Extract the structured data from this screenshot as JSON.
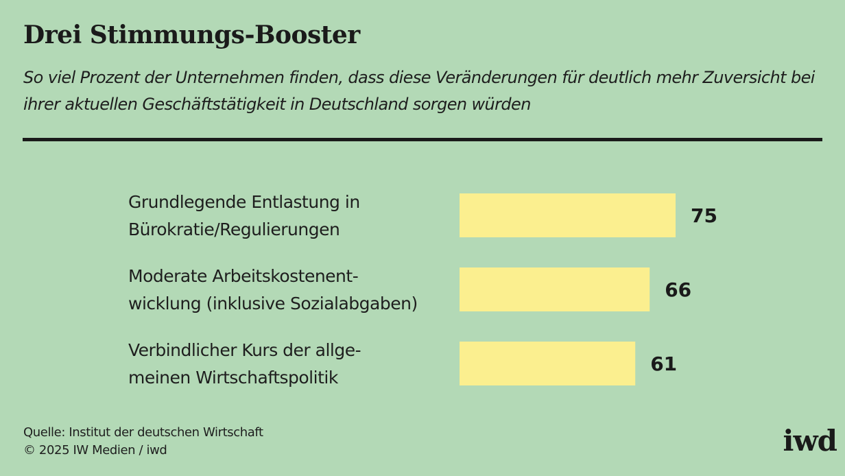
{
  "header": {
    "title": "Drei Stimmungs-Booster",
    "subtitle": "So viel Prozent der Unternehmen finden, dass diese Veränderungen für deutlich mehr Zuversicht bei ihrer aktuellen Geschäftstätigkeit in Deutschland sorgen würden"
  },
  "chart_data": {
    "type": "bar",
    "orientation": "horizontal",
    "title": "Drei Stimmungs-Booster",
    "xlabel": "",
    "ylabel": "",
    "xlim": [
      0,
      100
    ],
    "grid": false,
    "legend": "none",
    "categories": [
      [
        "Grundlegende Entlastung in",
        "Bürokratie/Regulierungen"
      ],
      [
        "Moderate Arbeitskostenent-",
        "wicklung (inklusive Sozialabgaben)"
      ],
      [
        "Verbindlicher Kurs der allge-",
        "meinen Wirtschaftspolitik"
      ]
    ],
    "values": [
      75,
      66,
      61
    ],
    "bar_color": "#fbef8f"
  },
  "footer": {
    "source": "Quelle: Institut der deutschen Wirtschaft",
    "copyright": "© 2025 IW Medien / iwd",
    "logo": "iwd"
  },
  "colors": {
    "background": "#b3d9b6",
    "bar": "#fbef8f",
    "text": "#1a1a1a"
  }
}
